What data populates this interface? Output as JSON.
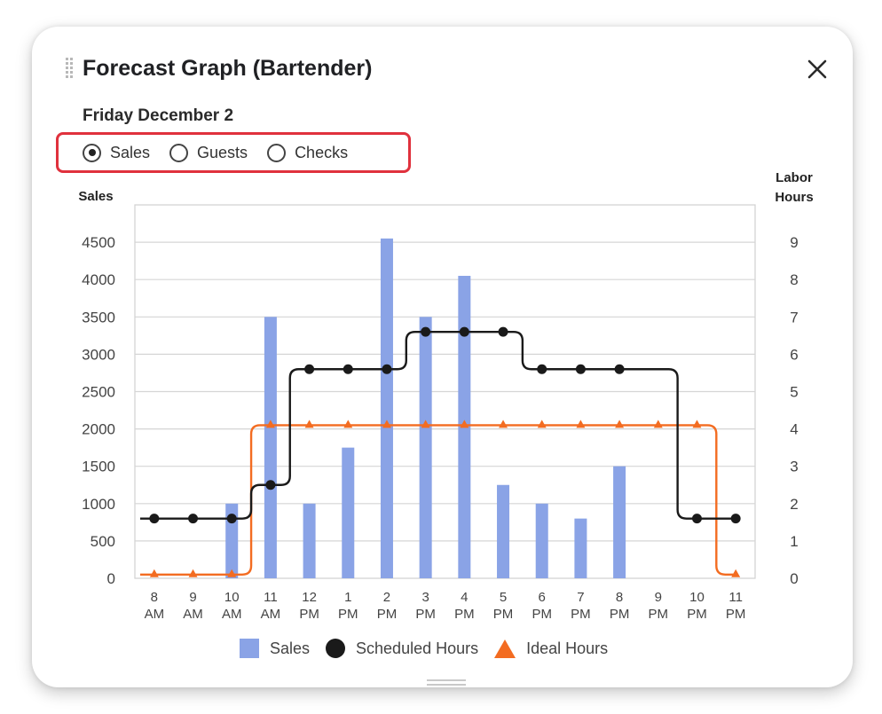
{
  "window": {
    "title": "Forecast Graph (Bartender)",
    "close_icon": "close-icon",
    "drag_icon": "drag-handle-icon"
  },
  "date_label": "Friday December 2",
  "metric_selector": {
    "selected": "Sales",
    "options": [
      {
        "label": "Sales",
        "checked": true
      },
      {
        "label": "Guests",
        "checked": false
      },
      {
        "label": "Checks",
        "checked": false
      }
    ],
    "highlight_color": "#e0313d"
  },
  "legend": {
    "items": [
      {
        "label": "Sales",
        "icon": "square",
        "color": "#8aa3e6"
      },
      {
        "label": "Scheduled Hours",
        "icon": "circle",
        "color": "#1a1a1a"
      },
      {
        "label": "Ideal Hours",
        "icon": "triangle",
        "color": "#f36c21"
      }
    ]
  },
  "chart_data": {
    "type": "bar",
    "title": "Forecast Graph (Bartender)",
    "subtitle": "Friday December 2",
    "xlabel": "",
    "ylabel": "Sales",
    "y2label": "Labor Hours",
    "ylim": [
      0,
      5000
    ],
    "y2lim": [
      0,
      10
    ],
    "yticks": [
      0,
      500,
      1000,
      1500,
      2000,
      2500,
      3000,
      3500,
      4000,
      4500
    ],
    "y2ticks": [
      0,
      1,
      2,
      3,
      4,
      5,
      6,
      7,
      8,
      9
    ],
    "grid": true,
    "legend_position": "bottom",
    "categories": [
      "8 AM",
      "9 AM",
      "10 AM",
      "11 AM",
      "12 PM",
      "1 PM",
      "2 PM",
      "3 PM",
      "4 PM",
      "5 PM",
      "6 PM",
      "7 PM",
      "8 PM",
      "9 PM",
      "10 PM",
      "11 PM"
    ],
    "series": [
      {
        "name": "Sales",
        "type": "bar",
        "axis": "left",
        "color": "#8aa3e6",
        "values": [
          0,
          0,
          1000,
          3500,
          1000,
          1750,
          4550,
          3500,
          4050,
          1250,
          1000,
          800,
          1500,
          0,
          0,
          0
        ]
      },
      {
        "name": "Scheduled Hours",
        "type": "line",
        "axis": "right",
        "marker": "circle",
        "color": "#1a1a1a",
        "values": [
          1.6,
          1.6,
          1.6,
          2.5,
          5.6,
          5.6,
          5.6,
          6.6,
          6.6,
          6.6,
          5.6,
          5.6,
          5.6,
          5.6,
          1.6,
          1.6
        ]
      },
      {
        "name": "Ideal Hours",
        "type": "line",
        "axis": "right",
        "marker": "triangle",
        "color": "#f36c21",
        "values": [
          0.1,
          0.1,
          0.1,
          4.1,
          4.1,
          4.1,
          4.1,
          4.1,
          4.1,
          4.1,
          4.1,
          4.1,
          4.1,
          4.1,
          4.1,
          0.1
        ]
      }
    ]
  }
}
